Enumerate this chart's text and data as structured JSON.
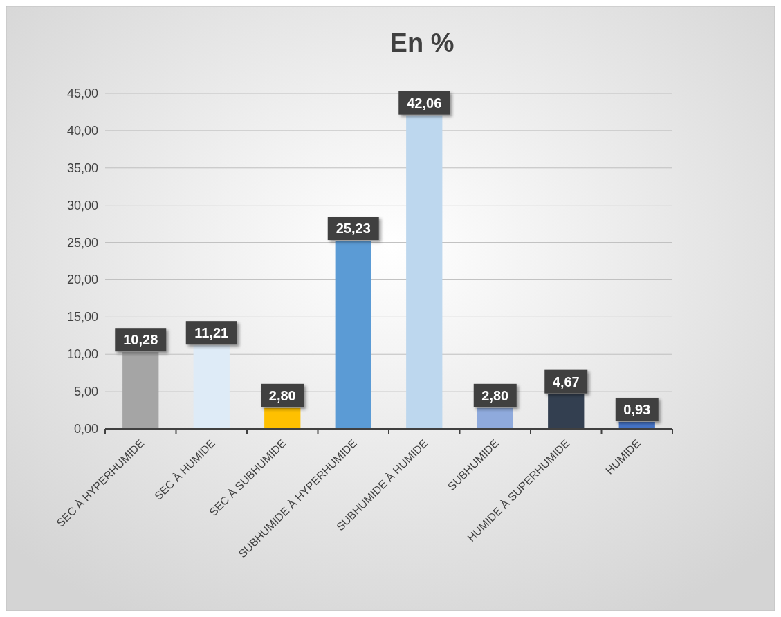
{
  "chart_data": {
    "type": "bar",
    "title": "En %",
    "categories": [
      "SEC À HYPERHUMIDE",
      "SEC À HUMIDE",
      "SEC À SUBHUMIDE",
      "SUBHUMIDE À HYPERHUMIDE",
      "SUBHUMIDE À HUMIDE",
      "SUBHUMIDE",
      "HUMIDE À SUPERHUMIDE",
      "HUMIDE"
    ],
    "values": [
      10.28,
      11.21,
      2.8,
      25.23,
      42.06,
      2.8,
      4.67,
      0.93
    ],
    "value_labels": [
      "10,28",
      "11,21",
      "2,80",
      "25,23",
      "42,06",
      "2,80",
      "4,67",
      "0,93"
    ],
    "colors": [
      "#a5a5a5",
      "#deebf7",
      "#ffc000",
      "#5b9bd5",
      "#bdd7ee",
      "#8faadc",
      "#333f50",
      "#4472c4"
    ],
    "ylim": [
      0,
      45
    ],
    "yticks": [
      {
        "value": 0,
        "label": "0,00"
      },
      {
        "value": 5,
        "label": "5,00"
      },
      {
        "value": 10,
        "label": "10,00"
      },
      {
        "value": 15,
        "label": "15,00"
      },
      {
        "value": 20,
        "label": "20,00"
      },
      {
        "value": 25,
        "label": "25,00"
      },
      {
        "value": 30,
        "label": "30,00"
      },
      {
        "value": 35,
        "label": "35,00"
      },
      {
        "value": 40,
        "label": "40,00"
      },
      {
        "value": 45,
        "label": "45,00"
      }
    ],
    "grid": "y"
  }
}
